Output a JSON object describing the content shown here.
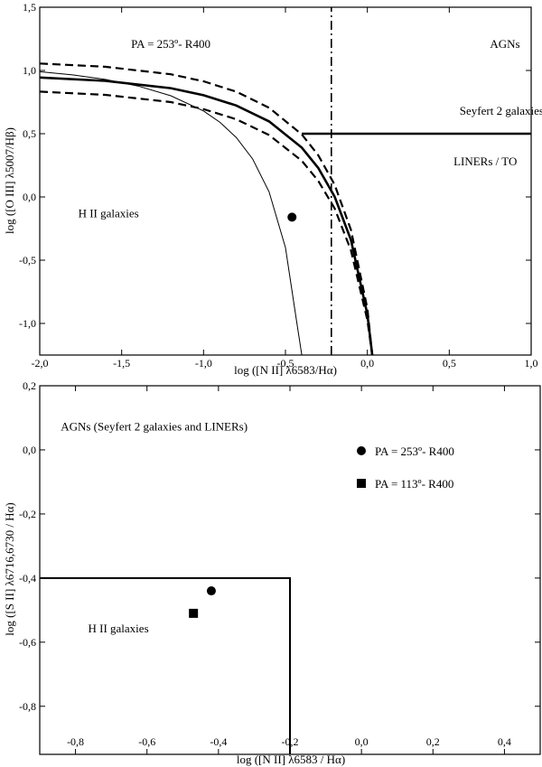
{
  "chart_data": [
    {
      "type": "line",
      "xlabel": "log ([N II] λ6583/Hα)",
      "ylabel": "log ([O III] λ5007/Hβ)",
      "xlim": [
        -2.0,
        1.0
      ],
      "ylim": [
        -1.25,
        1.5
      ],
      "xticks": [
        -2.0,
        -1.5,
        -1.0,
        -0.5,
        0.0,
        0.5,
        1.0
      ],
      "xtick_labels": [
        "-2,0",
        "-1,5",
        "-1,0",
        "-0,5",
        "0,0",
        "0,5",
        "1,0"
      ],
      "yticks": [
        -1.0,
        -0.5,
        0.0,
        0.5,
        1.0,
        1.5
      ],
      "ytick_labels": [
        "-1,0",
        "-0,5",
        "0,0",
        "0,5",
        "1,0",
        "1,5"
      ],
      "grid": false,
      "annotations": [
        {
          "text": "PA = 253º- R400",
          "x": -1.2,
          "y": 1.18
        },
        {
          "text": "AGNs",
          "x": 0.84,
          "y": 1.18
        },
        {
          "text": "Seyfert 2 galaxies",
          "x": 0.82,
          "y": 0.65
        },
        {
          "text": "LINERs / TO",
          "x": 0.72,
          "y": 0.25
        },
        {
          "text": "H II galaxies",
          "x": -1.58,
          "y": -0.16
        }
      ],
      "series": [
        {
          "style": "thick",
          "points": [
            [
              -2.0,
              0.944
            ],
            [
              -1.6,
              0.918
            ],
            [
              -1.2,
              0.86
            ],
            [
              -1.0,
              0.804
            ],
            [
              -0.8,
              0.723
            ],
            [
              -0.6,
              0.597
            ],
            [
              -0.4,
              0.39
            ],
            [
              -0.3,
              0.229
            ],
            [
              -0.2,
              0.003
            ],
            [
              -0.1,
              -0.34
            ],
            [
              0.0,
              -0.929
            ],
            [
              0.03,
              -1.25
            ]
          ]
        },
        {
          "style": "dashed",
          "points": [
            [
              -2.0,
              1.055
            ],
            [
              -1.6,
              1.029
            ],
            [
              -1.2,
              0.97
            ],
            [
              -1.0,
              0.914
            ],
            [
              -0.8,
              0.832
            ],
            [
              -0.6,
              0.705
            ],
            [
              -0.4,
              0.494
            ],
            [
              -0.3,
              0.33
            ],
            [
              -0.2,
              0.097
            ],
            [
              -0.1,
              -0.26
            ],
            [
              0.0,
              -0.883
            ],
            [
              0.03,
              -1.25
            ]
          ]
        },
        {
          "style": "dashed",
          "points": [
            [
              -2.0,
              0.833
            ],
            [
              -1.6,
              0.807
            ],
            [
              -1.2,
              0.75
            ],
            [
              -1.0,
              0.694
            ],
            [
              -0.8,
              0.614
            ],
            [
              -0.6,
              0.489
            ],
            [
              -0.4,
              0.286
            ],
            [
              -0.3,
              0.127
            ],
            [
              -0.2,
              -0.09
            ],
            [
              -0.1,
              -0.422
            ],
            [
              0.0,
              -0.975
            ],
            [
              0.03,
              -1.25
            ]
          ]
        },
        {
          "style": "thin",
          "points": [
            [
              -2.0,
              0.99
            ],
            [
              -1.8,
              0.965
            ],
            [
              -1.6,
              0.929
            ],
            [
              -1.4,
              0.877
            ],
            [
              -1.2,
              0.8
            ],
            [
              -1.0,
              0.68
            ],
            [
              -0.9,
              0.59
            ],
            [
              -0.8,
              0.47
            ],
            [
              -0.7,
              0.3
            ],
            [
              -0.6,
              0.04
            ],
            [
              -0.5,
              -0.4
            ],
            [
              -0.43,
              -1.0
            ],
            [
              -0.4,
              -1.25
            ]
          ]
        },
        {
          "style": "thick",
          "points": [
            [
              -0.4,
              0.5
            ],
            [
              1.0,
              0.5
            ]
          ]
        },
        {
          "style": "dashdot",
          "points": [
            [
              -0.22,
              0.5
            ],
            [
              1.0,
              0.5
            ]
          ]
        },
        {
          "style": "dashdot",
          "points": [
            [
              -0.22,
              -1.25
            ],
            [
              -0.22,
              1.5
            ]
          ]
        },
        {
          "name": "PA = 253º- R400",
          "style": "marker-circle",
          "points": [
            [
              -0.46,
              -0.16
            ]
          ]
        }
      ]
    },
    {
      "type": "scatter",
      "xlabel": "log ([N II] λ6583 / Hα)",
      "ylabel": "log ([S II] λ6716,6730 / Hα)",
      "xlim": [
        -0.9,
        0.5
      ],
      "ylim": [
        -0.95,
        0.2
      ],
      "xticks": [
        -0.8,
        -0.6,
        -0.4,
        -0.2,
        0.0,
        0.2,
        0.4
      ],
      "xtick_labels": [
        "-0,8",
        "-0,6",
        "-0,4",
        "-0,2",
        "0,0",
        "0,2",
        "0,4"
      ],
      "yticks": [
        -0.8,
        -0.6,
        -0.4,
        -0.2,
        0.0,
        0.2
      ],
      "ytick_labels": [
        "-0,8",
        "-0,6",
        "-0,4",
        "-0,2",
        "0,0",
        "0,2"
      ],
      "grid": false,
      "annotations": [
        {
          "text": "AGNs (Seyfert 2 galaxies and LINERs)",
          "x": -0.58,
          "y": 0.06
        },
        {
          "text": "H II galaxies",
          "x": -0.68,
          "y": -0.57
        }
      ],
      "boundary": [
        [
          -0.9,
          -0.4
        ],
        [
          -0.2,
          -0.4
        ],
        [
          -0.2,
          -0.95
        ]
      ],
      "series": [
        {
          "name": "PA = 253º- R400",
          "marker": "circle",
          "points": [
            [
              -0.42,
              -0.44
            ]
          ]
        },
        {
          "name": "PA = 113º- R400",
          "marker": "square",
          "points": [
            [
              -0.47,
              -0.51
            ]
          ]
        }
      ]
    }
  ]
}
